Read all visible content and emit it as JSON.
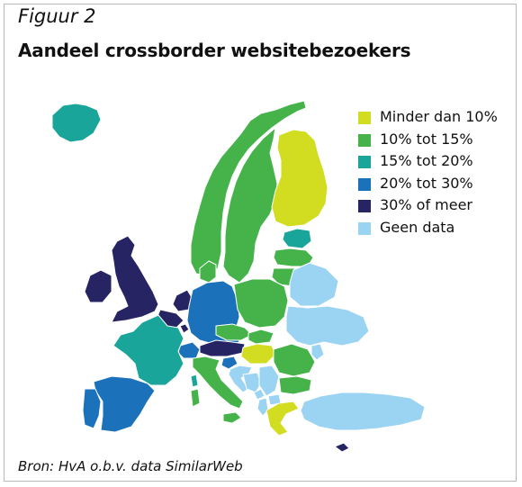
{
  "figure_label": "Figuur 2",
  "title": "Aandeel crossborder websitebezoekers",
  "legend": [
    {
      "label": "Minder dan 10%",
      "color": "#d2dd22"
    },
    {
      "label": "10% tot 15%",
      "color": "#45b34a"
    },
    {
      "label": "15% tot 20%",
      "color": "#1aa59a"
    },
    {
      "label": "20% tot 30%",
      "color": "#1b72ba"
    },
    {
      "label": "30% of meer",
      "color": "#262462"
    },
    {
      "label": "Geen data",
      "color": "#9bd3f3"
    }
  ],
  "source": "Bron: HvA o.b.v. data SimilarWeb",
  "regions": [
    {
      "name": "Iceland",
      "category": "15% tot 20%"
    },
    {
      "name": "Norway",
      "category": "10% tot 15%"
    },
    {
      "name": "Sweden",
      "category": "10% tot 15%"
    },
    {
      "name": "Finland",
      "category": "Minder dan 10%"
    },
    {
      "name": "Estonia",
      "category": "15% tot 20%"
    },
    {
      "name": "Latvia",
      "category": "10% tot 15%"
    },
    {
      "name": "Lithuania",
      "category": "10% tot 15%"
    },
    {
      "name": "United Kingdom",
      "category": "30% of meer"
    },
    {
      "name": "Ireland",
      "category": "30% of meer"
    },
    {
      "name": "Netherlands",
      "category": "30% of meer"
    },
    {
      "name": "Belgium",
      "category": "30% of meer"
    },
    {
      "name": "Luxembourg",
      "category": "30% of meer"
    },
    {
      "name": "Denmark",
      "category": "10% tot 15%"
    },
    {
      "name": "Germany",
      "category": "20% tot 30%"
    },
    {
      "name": "Poland",
      "category": "10% tot 15%"
    },
    {
      "name": "Czechia",
      "category": "10% tot 15%"
    },
    {
      "name": "Slovakia",
      "category": "10% tot 15%"
    },
    {
      "name": "Austria",
      "category": "30% of meer"
    },
    {
      "name": "Switzerland",
      "category": "20% tot 30%"
    },
    {
      "name": "Hungary",
      "category": "Minder dan 10%"
    },
    {
      "name": "Slovenia",
      "category": "20% tot 30%"
    },
    {
      "name": "Croatia",
      "category": "Geen data"
    },
    {
      "name": "Bosnia and Herzegovina",
      "category": "Geen data"
    },
    {
      "name": "Serbia",
      "category": "Geen data"
    },
    {
      "name": "Montenegro",
      "category": "Geen data"
    },
    {
      "name": "Albania",
      "category": "Geen data"
    },
    {
      "name": "North Macedonia",
      "category": "Geen data"
    },
    {
      "name": "Romania",
      "category": "10% tot 15%"
    },
    {
      "name": "Bulgaria",
      "category": "10% tot 15%"
    },
    {
      "name": "Greece",
      "category": "Minder dan 10%"
    },
    {
      "name": "Cyprus",
      "category": "30% of meer"
    },
    {
      "name": "Turkey",
      "category": "Geen data"
    },
    {
      "name": "Belarus",
      "category": "Geen data"
    },
    {
      "name": "Ukraine",
      "category": "Geen data"
    },
    {
      "name": "Moldova",
      "category": "Geen data"
    },
    {
      "name": "France",
      "category": "15% tot 20%"
    },
    {
      "name": "Spain",
      "category": "20% tot 30%"
    },
    {
      "name": "Portugal",
      "category": "20% tot 30%"
    },
    {
      "name": "Italy",
      "category": "10% tot 15%"
    }
  ]
}
